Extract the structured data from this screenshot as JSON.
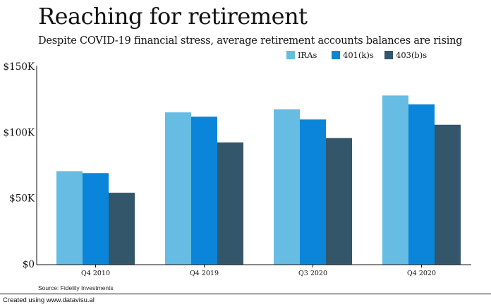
{
  "title": "Reaching for retirement",
  "subtitle": "Despite COVID-19 financial stress, average retirement accounts balances are rising",
  "source": "Source: Fidelity Investments",
  "credit": "Created using www.datavisu.al",
  "chart_data": {
    "type": "bar",
    "categories": [
      "Q4 2010",
      "Q4 2019",
      "Q3 2020",
      "Q4 2020"
    ],
    "series": [
      {
        "name": "IRAs",
        "color": "#66bce3",
        "values": [
          71000,
          115600,
          117900,
          128400
        ]
      },
      {
        "name": "401(k)s",
        "color": "#0a85d9",
        "values": [
          69500,
          112300,
          110200,
          121700
        ]
      },
      {
        "name": "403(b)s",
        "color": "#33566a",
        "values": [
          54600,
          92800,
          96100,
          106200
        ]
      }
    ],
    "yticks": [
      {
        "value": 0,
        "label": "$0"
      },
      {
        "value": 50000,
        "label": "$50K"
      },
      {
        "value": 100000,
        "label": "$100K"
      },
      {
        "value": 150000,
        "label": "$150K"
      }
    ],
    "ylim": [
      0,
      150000
    ],
    "grid": false,
    "legend_position": "top-right"
  }
}
